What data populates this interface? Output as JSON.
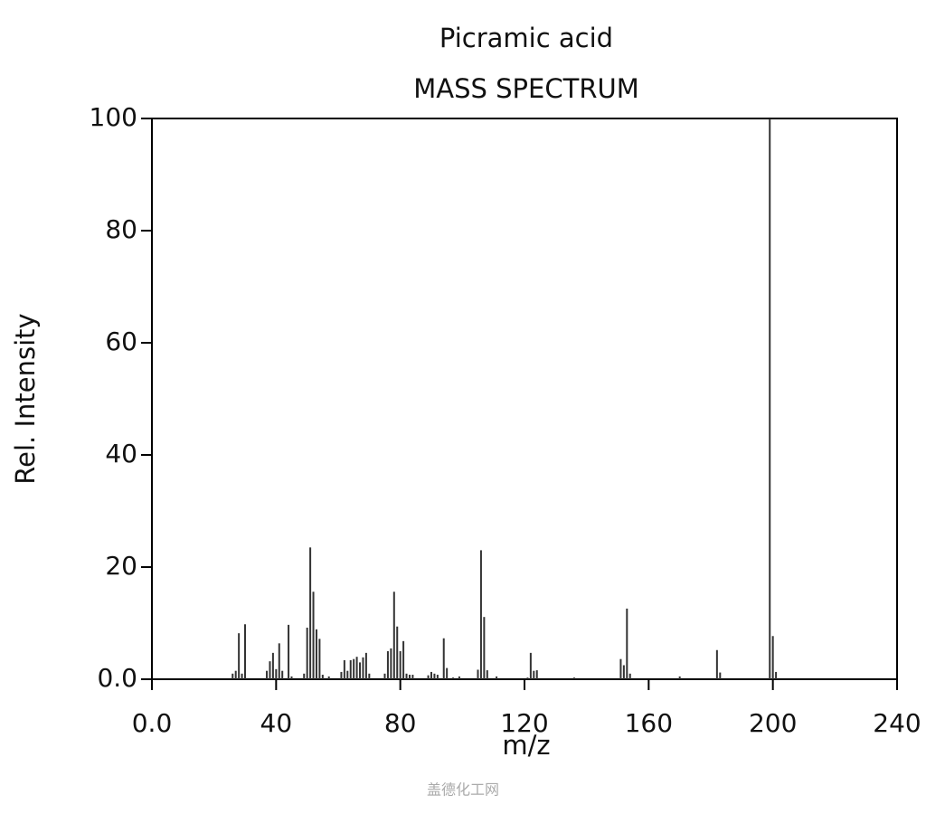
{
  "chart_data": {
    "type": "bar",
    "title": "Picramic acid",
    "subtitle": "MASS SPECTRUM",
    "x_label": "m/z",
    "y_label": "Rel. Intensity",
    "watermark": "盖德化工网",
    "x": [
      26,
      27,
      28,
      29,
      30,
      37,
      38,
      39,
      40,
      41,
      42,
      44,
      45,
      49,
      50,
      51,
      52,
      53,
      54,
      55,
      57,
      61,
      62,
      63,
      64,
      65,
      66,
      67,
      68,
      69,
      70,
      75,
      76,
      77,
      78,
      79,
      80,
      81,
      82,
      83,
      84,
      89,
      90,
      91,
      92,
      94,
      95,
      97,
      99,
      105,
      106,
      107,
      108,
      111,
      121,
      122,
      123,
      124,
      136,
      151,
      152,
      153,
      154,
      170,
      182,
      183,
      199,
      200,
      201
    ],
    "values": [
      1,
      1.5,
      8.2,
      1,
      9.8,
      1.5,
      3.2,
      4.7,
      1.8,
      6.4,
      1.5,
      9.7,
      0.5,
      1,
      9.2,
      23.5,
      15.6,
      8.9,
      7.2,
      0.8,
      0.5,
      1.3,
      3.4,
      1.5,
      3.4,
      3.6,
      4,
      3,
      3.9,
      4.7,
      1,
      1,
      5,
      5.5,
      15.6,
      9.4,
      5,
      6.8,
      1,
      0.8,
      0.8,
      0.7,
      1.3,
      1,
      0.8,
      7.3,
      2,
      0.3,
      0.5,
      1.7,
      23,
      11.1,
      1.6,
      0.5,
      0.3,
      4.7,
      1.5,
      1.6,
      0.3,
      3.6,
      2.5,
      12.6,
      1,
      0.5,
      5.2,
      1.2,
      100,
      7.7,
      1.3
    ],
    "color": "#333333",
    "xlim": [
      0,
      240
    ],
    "xticks": [
      {
        "value": 0,
        "label": "0.0"
      },
      40,
      80,
      120,
      160,
      200,
      240
    ],
    "ylim": [
      0,
      100
    ],
    "yticks": [
      {
        "value": 0,
        "label": "0.0"
      },
      20,
      40,
      60,
      80,
      100
    ]
  }
}
